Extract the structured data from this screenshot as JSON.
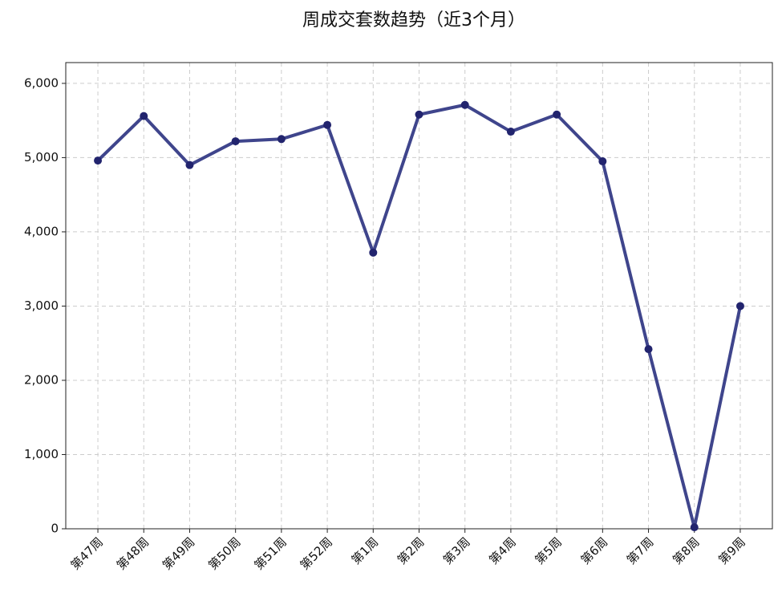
{
  "chart_data": {
    "type": "line",
    "title": "周成交套数趋势（近3个月）",
    "categories": [
      "第47周",
      "第48周",
      "第49周",
      "第50周",
      "第51周",
      "第52周",
      "第1周",
      "第2周",
      "第3周",
      "第4周",
      "第5周",
      "第6周",
      "第7周",
      "第8周",
      "第9周"
    ],
    "series": [
      {
        "name": "成交套数",
        "color": "#3f458c",
        "marker_color": "#22246e",
        "values": [
          4960,
          5560,
          4900,
          5220,
          5250,
          5440,
          3720,
          5580,
          5710,
          5350,
          5580,
          4950,
          2420,
          20,
          3000
        ]
      }
    ],
    "ylim": [
      0,
      6280
    ],
    "yticks": [
      0,
      {
        "value": 1000,
        "label": "1,000"
      },
      {
        "value": 2000,
        "label": "2,000"
      },
      {
        "value": 3000,
        "label": "3,000"
      },
      {
        "value": 4000,
        "label": "4,000"
      },
      {
        "value": 5000,
        "label": "5,000"
      },
      {
        "value": 6000,
        "label": "6,000"
      }
    ],
    "grid": true
  }
}
